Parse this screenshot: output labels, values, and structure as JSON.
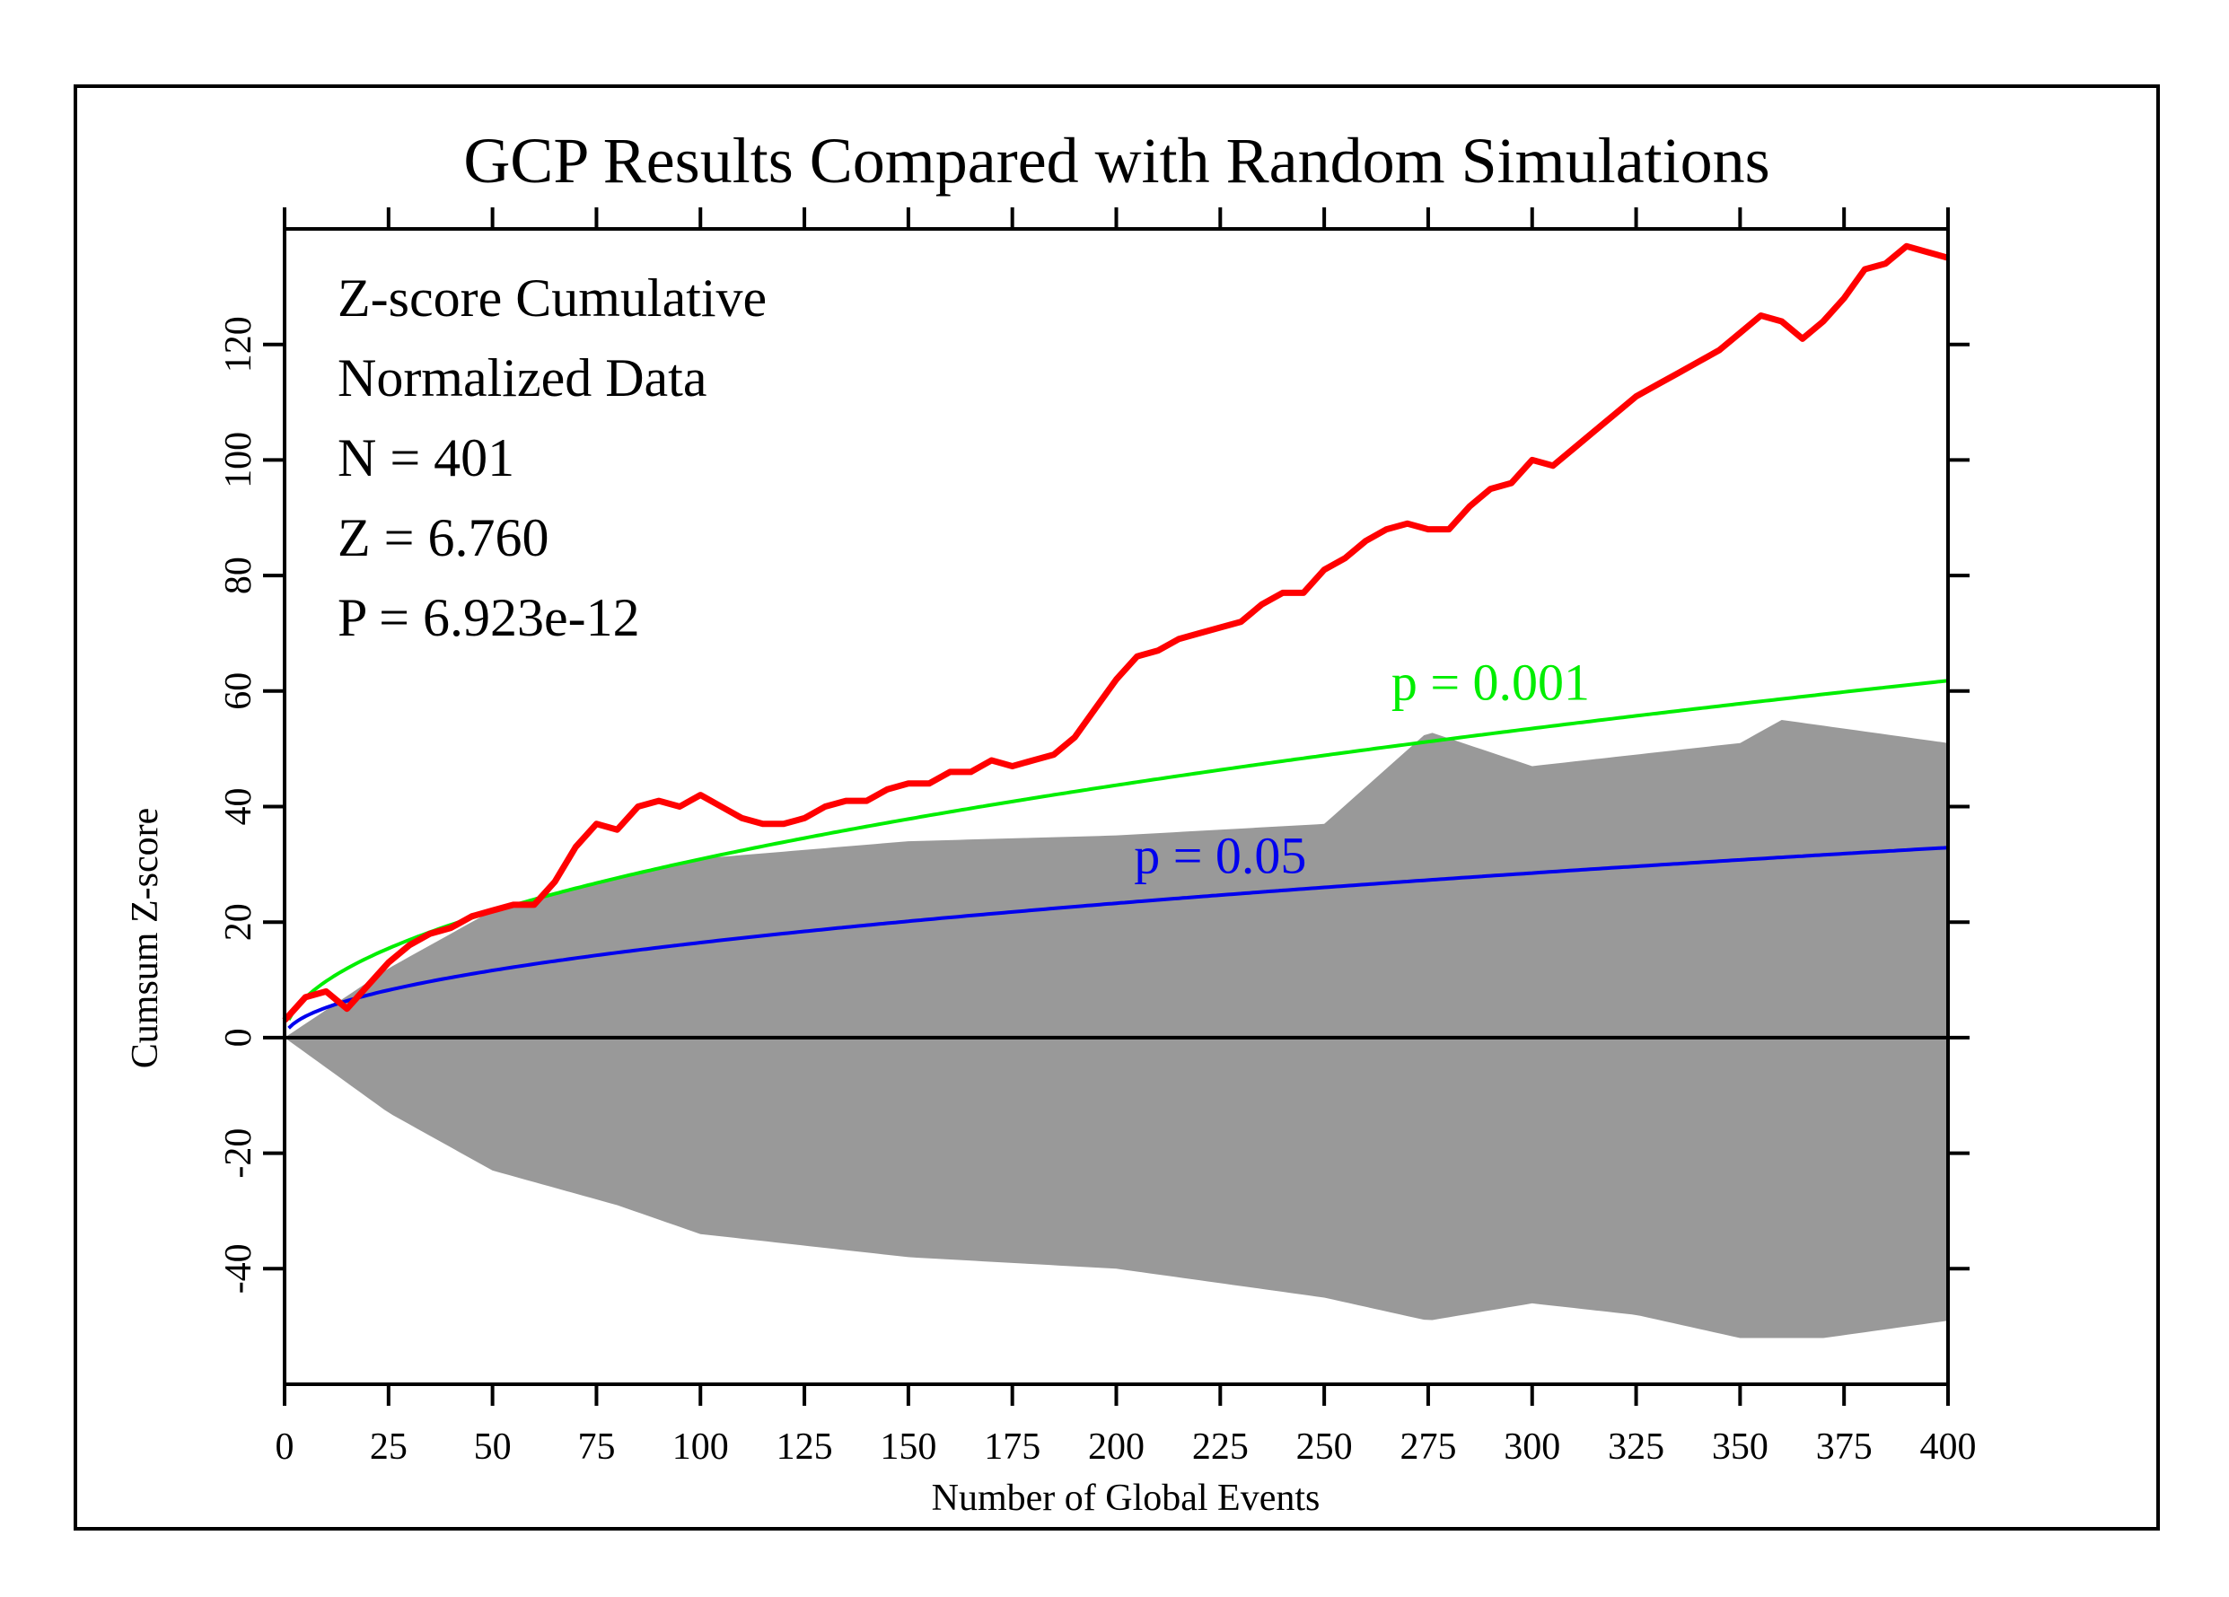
{
  "chart_data": {
    "type": "line",
    "title": "GCP Results Compared with Random Simulations",
    "xlabel": "Number of Global Events",
    "ylabel": "Cumsum Z-score",
    "xlim": [
      0,
      400
    ],
    "ylim": [
      -60,
      140
    ],
    "x_ticks": [
      0,
      25,
      50,
      75,
      100,
      125,
      150,
      175,
      200,
      225,
      250,
      275,
      300,
      325,
      350,
      375,
      400
    ],
    "y_ticks": [
      -40,
      -20,
      0,
      20,
      40,
      60,
      80,
      100,
      120
    ],
    "grid": false,
    "legend": "none",
    "stats_box": [
      "Z-score Cumulative",
      "Normalized Data",
      "N = 401",
      "Z = 6.760",
      "P = 6.923e-12"
    ],
    "series": [
      {
        "color": "#ff0000",
        "x": [
          0,
          5,
          10,
          15,
          20,
          25,
          30,
          35,
          40,
          45,
          50,
          55,
          60,
          65,
          70,
          75,
          80,
          85,
          90,
          95,
          100,
          105,
          110,
          115,
          120,
          125,
          130,
          135,
          140,
          145,
          150,
          155,
          160,
          165,
          170,
          175,
          180,
          185,
          190,
          195,
          200,
          205,
          210,
          215,
          220,
          225,
          230,
          235,
          240,
          245,
          250,
          255,
          260,
          265,
          270,
          275,
          280,
          285,
          290,
          295,
          300,
          305,
          310,
          315,
          320,
          325,
          330,
          335,
          340,
          345,
          350,
          355,
          360,
          365,
          370,
          375,
          380,
          385,
          390,
          395,
          400
        ],
        "y": [
          3,
          7,
          8,
          5,
          9,
          13,
          16,
          18,
          19,
          21,
          22,
          23,
          23,
          27,
          33,
          37,
          36,
          40,
          41,
          40,
          42,
          40,
          38,
          37,
          37,
          38,
          40,
          41,
          41,
          43,
          44,
          44,
          46,
          46,
          48,
          47,
          48,
          49,
          52,
          57,
          62,
          66,
          67,
          69,
          70,
          71,
          72,
          75,
          77,
          77,
          81,
          83,
          86,
          88,
          89,
          88,
          88,
          92,
          95,
          96,
          100,
          99,
          102,
          105,
          108,
          111,
          113,
          115,
          117,
          119,
          122,
          125,
          124,
          121,
          124,
          128,
          133,
          134,
          137,
          136,
          135
        ]
      },
      {
        "name": "p = 0.001",
        "color": "#00ee00",
        "function": "3.09*sqrt(x)"
      },
      {
        "name": "p = 0.05",
        "color": "#0000ee",
        "function": "1.645*sqrt(x)"
      }
    ],
    "simulation_band": {
      "color": "#999999",
      "upper": [
        [
          0,
          0
        ],
        [
          25,
          12
        ],
        [
          50,
          22
        ],
        [
          100,
          31
        ],
        [
          150,
          34
        ],
        [
          200,
          35
        ],
        [
          250,
          37
        ],
        [
          275,
          53
        ],
        [
          300,
          47
        ],
        [
          350,
          51
        ],
        [
          360,
          55
        ],
        [
          400,
          51
        ]
      ],
      "lower": [
        [
          0,
          0
        ],
        [
          25,
          -13
        ],
        [
          50,
          -23
        ],
        [
          80,
          -29
        ],
        [
          100,
          -34
        ],
        [
          150,
          -38
        ],
        [
          200,
          -40
        ],
        [
          250,
          -45
        ],
        [
          275,
          -49
        ],
        [
          300,
          -46
        ],
        [
          325,
          -48
        ],
        [
          350,
          -52
        ],
        [
          370,
          -52
        ],
        [
          400,
          -49
        ]
      ]
    }
  }
}
